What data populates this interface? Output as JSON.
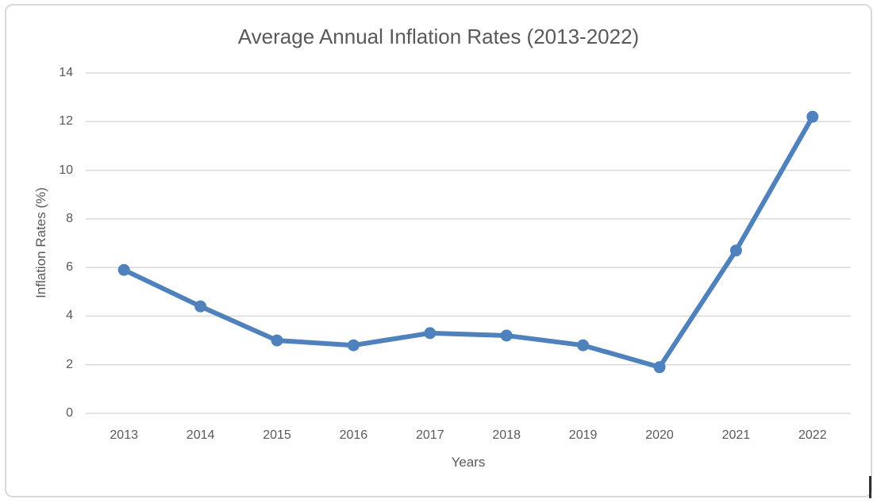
{
  "window": {
    "background_color": "#ffffff",
    "frame_border_color": "#d9d9d9"
  },
  "chart_data": {
    "type": "line",
    "title": "Average Annual Inflation Rates (2013-2022)",
    "xlabel": "Years",
    "ylabel": "Inflation Rates (%)",
    "categories": [
      "2013",
      "2014",
      "2015",
      "2016",
      "2017",
      "2018",
      "2019",
      "2020",
      "2021",
      "2022"
    ],
    "values": [
      5.9,
      4.4,
      3.0,
      2.8,
      3.3,
      3.2,
      2.8,
      1.9,
      6.7,
      12.2
    ],
    "yticks": [
      0,
      2,
      4,
      6,
      8,
      10,
      12,
      14
    ],
    "ylim": [
      0,
      14
    ],
    "grid": true,
    "legend_position": "none",
    "line_color": "#4f81bd",
    "marker": "circle",
    "gridline_color": "#d9d9d9",
    "text_color": "#595959"
  }
}
